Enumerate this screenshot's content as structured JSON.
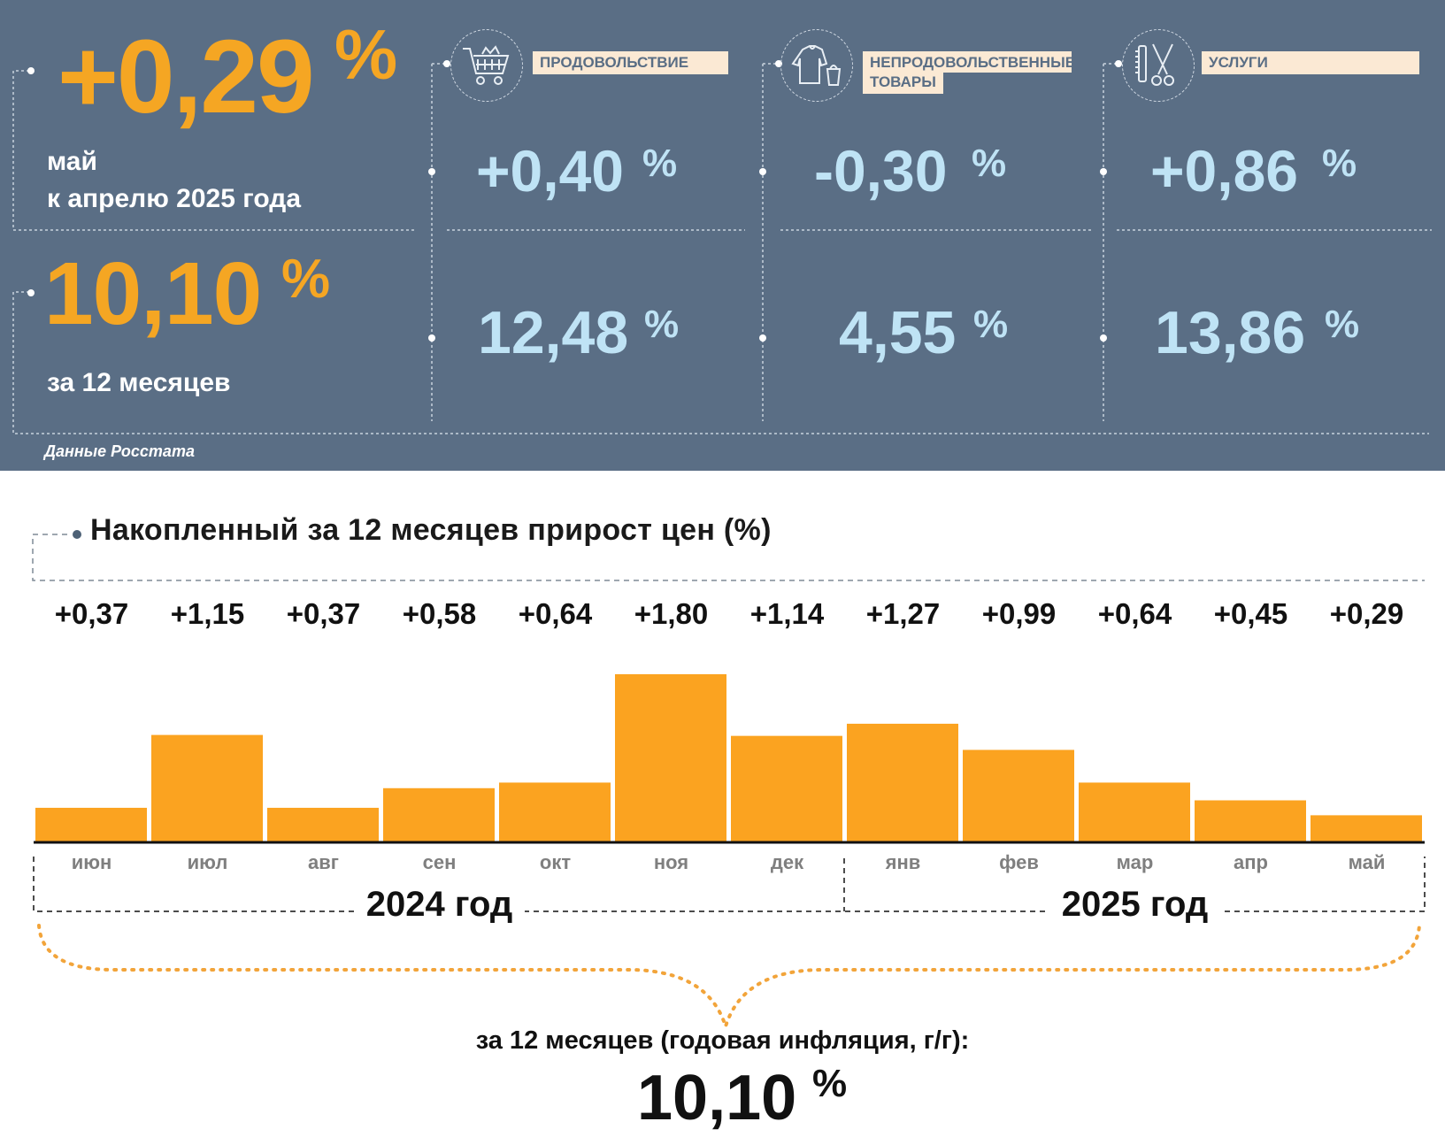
{
  "summary": {
    "monthly": {
      "value": "+0,29",
      "unit": "%",
      "caption_line1": "май",
      "caption_line2": "к апрелю 2025 года"
    },
    "annual": {
      "value": "10,10",
      "unit": "%",
      "caption": "за 12 месяцев"
    },
    "source": "Данные Росстата"
  },
  "categories": [
    {
      "label": "ПРОДОВОЛЬСТВИЕ",
      "icon": "shopping-cart-icon",
      "monthly": "+0,40",
      "annual": "12,48",
      "unit": "%"
    },
    {
      "label_line1": "НЕПРОДОВОЛЬСТВЕННЫЕ",
      "label_line2": "ТОВАРЫ",
      "icon": "clothing-bag-icon",
      "monthly": "-0,30",
      "annual": "4,55",
      "unit": "%"
    },
    {
      "label": "УСЛУГИ",
      "icon": "comb-scissors-icon",
      "monthly": "+0,86",
      "annual": "13,86",
      "unit": "%"
    }
  ],
  "colors": {
    "panel": "#5a6e85",
    "accent": "#f5a623",
    "light_blue": "#bfe3f5",
    "label_bg": "#fbe9d4",
    "bar": "#fba320"
  },
  "chart_data": {
    "type": "bar",
    "title": "Накопленный за 12 месяцев прирост цен (%)",
    "categories": [
      "июн",
      "июл",
      "авг",
      "сен",
      "окт",
      "ноя",
      "дек",
      "янв",
      "фев",
      "мар",
      "апр",
      "май"
    ],
    "value_labels": [
      "+0,37",
      "+1,15",
      "+0,37",
      "+0,58",
      "+0,64",
      "+1,80",
      "+1,14",
      "+1,27",
      "+0,99",
      "+0,64",
      "+0,45",
      "+0,29"
    ],
    "values": [
      0.37,
      1.15,
      0.37,
      0.58,
      0.64,
      1.8,
      1.14,
      1.27,
      0.99,
      0.64,
      0.45,
      0.29
    ],
    "year_groups": [
      {
        "label": "2024 год",
        "months": 7
      },
      {
        "label": "2025 год",
        "months": 5
      }
    ],
    "annual_caption": "за 12 месяцев (годовая инфляция, г/г):",
    "annual_value": "10,10",
    "annual_unit": "%"
  }
}
